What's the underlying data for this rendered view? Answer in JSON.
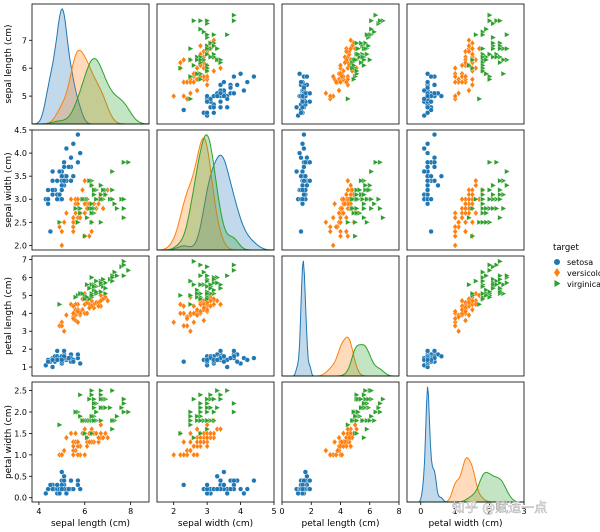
{
  "chart_data": {
    "type": "scatter",
    "title": "",
    "variables": [
      "sepal length (cm)",
      "sepal width (cm)",
      "petal length (cm)",
      "petal width (cm)"
    ],
    "ranges": [
      [
        4.0,
        8.3
      ],
      [
        1.9,
        4.5
      ],
      [
        0.5,
        7.2
      ],
      [
        -0.1,
        2.7
      ]
    ],
    "ticks": [
      [
        5,
        6,
        7
      ],
      [
        2.0,
        2.5,
        3.0,
        3.5,
        4.0,
        4.5
      ],
      [
        1,
        2,
        3,
        4,
        5,
        6,
        7
      ],
      [
        0.0,
        0.5,
        1.0,
        1.5,
        2.0,
        2.5
      ]
    ],
    "bottom_ticks": [
      [
        4,
        6,
        8
      ],
      [
        2,
        3,
        4,
        5
      ],
      [
        0,
        2,
        4,
        6,
        8
      ],
      [
        0,
        1,
        2,
        3
      ]
    ],
    "bottom_ranges": [
      [
        3.7,
        8.8
      ],
      [
        1.5,
        5.0
      ],
      [
        0,
        8
      ],
      [
        -0.4,
        3.0
      ]
    ],
    "legend": {
      "title": "target",
      "entries": [
        {
          "name": "setosa",
          "color": "#1f77b4",
          "marker": "circle"
        },
        {
          "name": "versicolor",
          "color": "#ff7f0e",
          "marker": "diamond"
        },
        {
          "name": "virginica",
          "color": "#2ca02c",
          "marker": "triangle-right"
        }
      ]
    },
    "series": [
      {
        "name": "setosa",
        "data": [
          [
            5.1,
            3.5,
            1.4,
            0.2
          ],
          [
            4.9,
            3.0,
            1.4,
            0.2
          ],
          [
            4.7,
            3.2,
            1.3,
            0.2
          ],
          [
            4.6,
            3.1,
            1.5,
            0.2
          ],
          [
            5.0,
            3.6,
            1.4,
            0.2
          ],
          [
            5.4,
            3.9,
            1.7,
            0.4
          ],
          [
            4.6,
            3.4,
            1.4,
            0.3
          ],
          [
            5.0,
            3.4,
            1.5,
            0.2
          ],
          [
            4.4,
            2.9,
            1.4,
            0.2
          ],
          [
            4.9,
            3.1,
            1.5,
            0.1
          ],
          [
            5.4,
            3.7,
            1.5,
            0.2
          ],
          [
            4.8,
            3.4,
            1.6,
            0.2
          ],
          [
            4.8,
            3.0,
            1.4,
            0.1
          ],
          [
            4.3,
            3.0,
            1.1,
            0.1
          ],
          [
            5.8,
            4.0,
            1.2,
            0.2
          ],
          [
            5.7,
            4.4,
            1.5,
            0.4
          ],
          [
            5.4,
            3.9,
            1.3,
            0.4
          ],
          [
            5.1,
            3.5,
            1.4,
            0.3
          ],
          [
            5.7,
            3.8,
            1.7,
            0.3
          ],
          [
            5.1,
            3.8,
            1.5,
            0.3
          ],
          [
            5.4,
            3.4,
            1.7,
            0.2
          ],
          [
            5.1,
            3.7,
            1.5,
            0.4
          ],
          [
            4.6,
            3.6,
            1.0,
            0.2
          ],
          [
            5.1,
            3.3,
            1.7,
            0.5
          ],
          [
            4.8,
            3.4,
            1.9,
            0.2
          ],
          [
            5.0,
            3.0,
            1.6,
            0.2
          ],
          [
            5.0,
            3.4,
            1.6,
            0.4
          ],
          [
            5.2,
            3.5,
            1.5,
            0.2
          ],
          [
            5.2,
            3.4,
            1.4,
            0.2
          ],
          [
            4.7,
            3.2,
            1.6,
            0.2
          ],
          [
            4.8,
            3.1,
            1.6,
            0.2
          ],
          [
            5.4,
            3.4,
            1.5,
            0.4
          ],
          [
            5.2,
            4.1,
            1.5,
            0.1
          ],
          [
            5.5,
            4.2,
            1.4,
            0.2
          ],
          [
            4.9,
            3.1,
            1.5,
            0.2
          ],
          [
            5.0,
            3.2,
            1.2,
            0.2
          ],
          [
            5.5,
            3.5,
            1.3,
            0.2
          ],
          [
            4.9,
            3.6,
            1.4,
            0.1
          ],
          [
            4.4,
            3.0,
            1.3,
            0.2
          ],
          [
            5.1,
            3.4,
            1.5,
            0.2
          ],
          [
            5.0,
            3.5,
            1.3,
            0.3
          ],
          [
            4.5,
            2.3,
            1.3,
            0.3
          ],
          [
            4.4,
            3.2,
            1.3,
            0.2
          ],
          [
            5.0,
            3.5,
            1.6,
            0.6
          ],
          [
            5.1,
            3.8,
            1.9,
            0.4
          ],
          [
            4.8,
            3.0,
            1.4,
            0.3
          ],
          [
            5.1,
            3.8,
            1.6,
            0.2
          ],
          [
            4.6,
            3.2,
            1.4,
            0.2
          ],
          [
            5.3,
            3.7,
            1.5,
            0.2
          ],
          [
            5.0,
            3.3,
            1.4,
            0.2
          ]
        ]
      },
      {
        "name": "versicolor",
        "data": [
          [
            7.0,
            3.2,
            4.7,
            1.4
          ],
          [
            6.4,
            3.2,
            4.5,
            1.5
          ],
          [
            6.9,
            3.1,
            4.9,
            1.5
          ],
          [
            5.5,
            2.3,
            4.0,
            1.3
          ],
          [
            6.5,
            2.8,
            4.6,
            1.5
          ],
          [
            5.7,
            2.8,
            4.5,
            1.3
          ],
          [
            6.3,
            3.3,
            4.7,
            1.6
          ],
          [
            4.9,
            2.4,
            3.3,
            1.0
          ],
          [
            6.6,
            2.9,
            4.6,
            1.3
          ],
          [
            5.2,
            2.7,
            3.9,
            1.4
          ],
          [
            5.0,
            2.0,
            3.5,
            1.0
          ],
          [
            5.9,
            3.0,
            4.2,
            1.5
          ],
          [
            6.0,
            2.2,
            4.0,
            1.0
          ],
          [
            6.1,
            2.9,
            4.7,
            1.4
          ],
          [
            5.6,
            2.9,
            3.6,
            1.3
          ],
          [
            6.7,
            3.1,
            4.4,
            1.4
          ],
          [
            5.6,
            3.0,
            4.5,
            1.5
          ],
          [
            5.8,
            2.7,
            4.1,
            1.0
          ],
          [
            6.2,
            2.2,
            4.5,
            1.5
          ],
          [
            5.6,
            2.5,
            3.9,
            1.1
          ],
          [
            5.9,
            3.2,
            4.8,
            1.8
          ],
          [
            6.1,
            2.8,
            4.0,
            1.3
          ],
          [
            6.3,
            2.5,
            4.9,
            1.5
          ],
          [
            6.1,
            2.8,
            4.7,
            1.2
          ],
          [
            6.4,
            2.9,
            4.3,
            1.3
          ],
          [
            6.6,
            3.0,
            4.4,
            1.4
          ],
          [
            6.8,
            2.8,
            4.8,
            1.4
          ],
          [
            6.7,
            3.0,
            5.0,
            1.7
          ],
          [
            6.0,
            2.9,
            4.5,
            1.5
          ],
          [
            5.7,
            2.6,
            3.5,
            1.0
          ],
          [
            5.5,
            2.4,
            3.8,
            1.1
          ],
          [
            5.5,
            2.4,
            3.7,
            1.0
          ],
          [
            5.8,
            2.7,
            3.9,
            1.2
          ],
          [
            6.0,
            2.7,
            5.1,
            1.6
          ],
          [
            5.4,
            3.0,
            4.5,
            1.5
          ],
          [
            6.0,
            3.4,
            4.5,
            1.6
          ],
          [
            6.7,
            3.1,
            4.7,
            1.5
          ],
          [
            6.3,
            2.3,
            4.4,
            1.3
          ],
          [
            5.6,
            3.0,
            4.1,
            1.3
          ],
          [
            5.5,
            2.5,
            4.0,
            1.3
          ],
          [
            5.5,
            2.6,
            4.4,
            1.2
          ],
          [
            6.1,
            3.0,
            4.6,
            1.4
          ],
          [
            5.8,
            2.6,
            4.0,
            1.2
          ],
          [
            5.0,
            2.3,
            3.3,
            1.0
          ],
          [
            5.6,
            2.7,
            4.2,
            1.3
          ],
          [
            5.7,
            3.0,
            4.2,
            1.2
          ],
          [
            5.7,
            2.9,
            4.2,
            1.3
          ],
          [
            6.2,
            2.9,
            4.3,
            1.3
          ],
          [
            5.1,
            2.5,
            3.0,
            1.1
          ],
          [
            5.7,
            2.8,
            4.1,
            1.3
          ]
        ]
      },
      {
        "name": "virginica",
        "data": [
          [
            6.3,
            3.3,
            6.0,
            2.5
          ],
          [
            5.8,
            2.7,
            5.1,
            1.9
          ],
          [
            7.1,
            3.0,
            5.9,
            2.1
          ],
          [
            6.3,
            2.9,
            5.6,
            1.8
          ],
          [
            6.5,
            3.0,
            5.8,
            2.2
          ],
          [
            7.6,
            3.0,
            6.6,
            2.1
          ],
          [
            4.9,
            2.5,
            4.5,
            1.7
          ],
          [
            7.3,
            2.9,
            6.3,
            1.8
          ],
          [
            6.7,
            2.5,
            5.8,
            1.8
          ],
          [
            7.2,
            3.6,
            6.1,
            2.5
          ],
          [
            6.5,
            3.2,
            5.1,
            2.0
          ],
          [
            6.4,
            2.7,
            5.3,
            1.9
          ],
          [
            6.8,
            3.0,
            5.5,
            2.1
          ],
          [
            5.7,
            2.5,
            5.0,
            2.0
          ],
          [
            5.8,
            2.8,
            5.1,
            2.4
          ],
          [
            6.4,
            3.2,
            5.3,
            2.3
          ],
          [
            6.5,
            3.0,
            5.5,
            1.8
          ],
          [
            7.7,
            3.8,
            6.7,
            2.2
          ],
          [
            7.7,
            2.6,
            6.9,
            2.3
          ],
          [
            6.0,
            2.2,
            5.0,
            1.5
          ],
          [
            6.9,
            3.2,
            5.7,
            2.3
          ],
          [
            5.6,
            2.8,
            4.9,
            2.0
          ],
          [
            7.7,
            2.8,
            6.7,
            2.0
          ],
          [
            6.3,
            2.7,
            4.9,
            1.8
          ],
          [
            6.7,
            3.3,
            5.7,
            2.1
          ],
          [
            7.2,
            3.2,
            6.0,
            1.8
          ],
          [
            6.2,
            2.8,
            4.8,
            1.8
          ],
          [
            6.1,
            3.0,
            4.9,
            1.8
          ],
          [
            6.4,
            2.8,
            5.6,
            2.1
          ],
          [
            7.2,
            3.0,
            5.8,
            1.6
          ],
          [
            7.4,
            2.8,
            6.1,
            1.9
          ],
          [
            7.9,
            3.8,
            6.4,
            2.0
          ],
          [
            6.4,
            2.8,
            5.6,
            2.2
          ],
          [
            6.3,
            2.8,
            5.1,
            1.5
          ],
          [
            6.1,
            2.6,
            5.6,
            1.4
          ],
          [
            7.7,
            3.0,
            6.1,
            2.3
          ],
          [
            6.3,
            3.4,
            5.6,
            2.4
          ],
          [
            6.4,
            3.1,
            5.5,
            1.8
          ],
          [
            6.0,
            3.0,
            4.8,
            1.8
          ],
          [
            6.9,
            3.1,
            5.4,
            2.1
          ],
          [
            6.7,
            3.1,
            5.6,
            2.4
          ],
          [
            6.9,
            3.1,
            5.1,
            2.3
          ],
          [
            5.8,
            2.7,
            5.1,
            1.9
          ],
          [
            6.8,
            3.2,
            5.9,
            2.3
          ],
          [
            6.7,
            3.3,
            5.7,
            2.5
          ],
          [
            6.7,
            3.0,
            5.2,
            2.3
          ],
          [
            6.3,
            2.5,
            5.0,
            1.9
          ],
          [
            6.5,
            3.0,
            5.2,
            2.0
          ],
          [
            6.2,
            3.4,
            5.4,
            2.3
          ],
          [
            5.9,
            3.0,
            5.1,
            1.8
          ]
        ]
      }
    ]
  },
  "watermark": "知乎 @赋适一点"
}
